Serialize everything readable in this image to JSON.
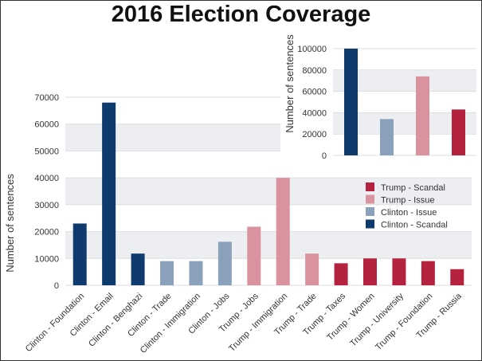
{
  "chart_data": [
    {
      "type": "bar",
      "title": "2016 Election Coverage",
      "xlabel": "",
      "ylabel": "Number of sentences",
      "ylim": [
        0,
        70000
      ],
      "yticks": [
        0,
        10000,
        20000,
        30000,
        40000,
        50000,
        60000,
        70000
      ],
      "grid": true,
      "categories": [
        "Clinton - Foundation",
        "Clinton - Email",
        "Clinton - Benghazi",
        "Clinton - Trade",
        "Clinton - Immigration",
        "Clinton - Jobs",
        "Trump - Jobs",
        "Trump - Immigration",
        "Trump - Trade",
        "Trump - Taxes",
        "Trump - Women",
        "Trump - University",
        "Trump - Foundation",
        "Trump - Russia"
      ],
      "values": [
        23000,
        68000,
        11800,
        9000,
        9000,
        16200,
        21800,
        40000,
        11800,
        8200,
        10000,
        10000,
        9000,
        6000
      ],
      "groups": [
        "Clinton - Scandal",
        "Clinton - Scandal",
        "Clinton - Scandal",
        "Clinton - Issue",
        "Clinton - Issue",
        "Clinton - Issue",
        "Trump - Issue",
        "Trump - Issue",
        "Trump - Issue",
        "Trump - Scandal",
        "Trump - Scandal",
        "Trump - Scandal",
        "Trump - Scandal",
        "Trump - Scandal"
      ],
      "legend": {
        "placement": "right",
        "entries": [
          "Trump - Scandal",
          "Trump - Issue",
          "Clinton - Issue",
          "Clinton - Scandal"
        ]
      },
      "colors": {
        "Clinton - Scandal": "#0f3a6e",
        "Clinton - Issue": "#8aa0bb",
        "Trump - Issue": "#da929e",
        "Trump - Scandal": "#b5223f"
      }
    },
    {
      "type": "bar",
      "ylabel": "Number of sentences",
      "ylim": [
        0,
        100000
      ],
      "yticks": [
        0,
        20000,
        40000,
        60000,
        80000,
        100000
      ],
      "grid": true,
      "categories": [
        "Clinton - Scandal",
        "Clinton - Issue",
        "Trump - Issue",
        "Trump - Scandal"
      ],
      "values": [
        100000,
        34000,
        74000,
        43000
      ]
    }
  ]
}
